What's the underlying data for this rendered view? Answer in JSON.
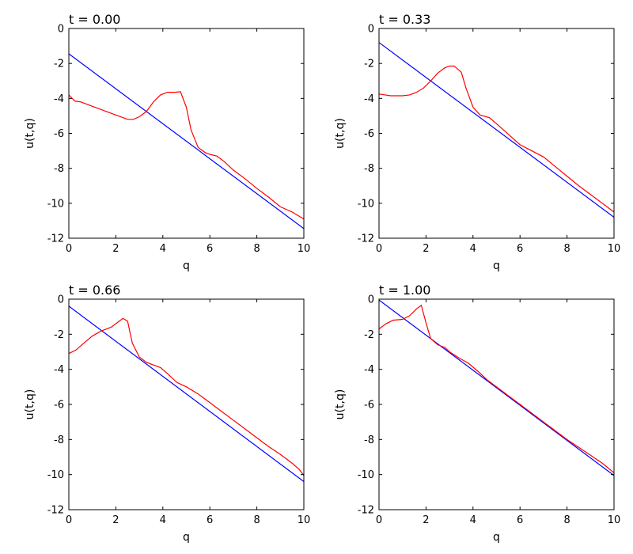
{
  "colors": {
    "series_a": "#0000ff",
    "series_b": "#ff0000"
  },
  "chart_data": [
    {
      "type": "line",
      "title": "t = 0.00",
      "xlabel": "q",
      "ylabel": "u(t,q)",
      "xlim": [
        0,
        10
      ],
      "ylim": [
        -12,
        0
      ],
      "xticks": [
        0,
        2,
        4,
        6,
        8,
        10
      ],
      "yticks": [
        0,
        -2,
        -4,
        -6,
        -8,
        -10,
        -12
      ],
      "grid": false,
      "series": [
        {
          "color": "#0000ff",
          "x": [
            0,
            10
          ],
          "y": [
            -1.45,
            -11.45
          ]
        },
        {
          "color": "#ff0000",
          "x": [
            0,
            0.25,
            0.5,
            1,
            1.5,
            2,
            2.5,
            2.75,
            3,
            3.3,
            3.6,
            3.9,
            4.2,
            4.5,
            4.75,
            5,
            5.2,
            5.5,
            5.8,
            6,
            6.3,
            6.6,
            7,
            7.5,
            8,
            8.5,
            9,
            9.5,
            10
          ],
          "y": [
            -3.8,
            -4.15,
            -4.2,
            -4.45,
            -4.7,
            -4.95,
            -5.2,
            -5.2,
            -5.05,
            -4.75,
            -4.2,
            -3.8,
            -3.65,
            -3.65,
            -3.62,
            -4.5,
            -5.8,
            -6.8,
            -7.1,
            -7.2,
            -7.3,
            -7.6,
            -8.1,
            -8.6,
            -9.15,
            -9.65,
            -10.2,
            -10.5,
            -10.9
          ]
        }
      ]
    },
    {
      "type": "line",
      "title": "t = 0.33",
      "xlabel": "q",
      "ylabel": "u(t,q)",
      "xlim": [
        0,
        10
      ],
      "ylim": [
        -12,
        0
      ],
      "xticks": [
        0,
        2,
        4,
        6,
        8,
        10
      ],
      "yticks": [
        0,
        -2,
        -4,
        -6,
        -8,
        -10,
        -12
      ],
      "grid": false,
      "series": [
        {
          "color": "#0000ff",
          "x": [
            0,
            10
          ],
          "y": [
            -0.8,
            -10.8
          ]
        },
        {
          "color": "#ff0000",
          "x": [
            0,
            0.5,
            1,
            1.3,
            1.6,
            1.9,
            2.2,
            2.5,
            2.8,
            3.0,
            3.2,
            3.5,
            3.7,
            4.0,
            4.3,
            4.7,
            5.0,
            5.5,
            6.0,
            6.5,
            7.0,
            7.5,
            8.0,
            8.5,
            9.0,
            9.5,
            10
          ],
          "y": [
            -3.75,
            -3.85,
            -3.85,
            -3.8,
            -3.65,
            -3.4,
            -3.0,
            -2.55,
            -2.25,
            -2.15,
            -2.15,
            -2.5,
            -3.4,
            -4.5,
            -4.95,
            -5.1,
            -5.45,
            -6.05,
            -6.65,
            -7.0,
            -7.35,
            -7.9,
            -8.45,
            -9.0,
            -9.5,
            -10.0,
            -10.5
          ]
        }
      ]
    },
    {
      "type": "line",
      "title": "t = 0.66",
      "xlabel": "q",
      "ylabel": "u(t,q)",
      "xlim": [
        0,
        10
      ],
      "ylim": [
        -12,
        0
      ],
      "xticks": [
        0,
        2,
        4,
        6,
        8,
        10
      ],
      "yticks": [
        0,
        -2,
        -4,
        -6,
        -8,
        -10,
        -12
      ],
      "grid": false,
      "series": [
        {
          "color": "#0000ff",
          "x": [
            0,
            10
          ],
          "y": [
            -0.4,
            -10.4
          ]
        },
        {
          "color": "#ff0000",
          "x": [
            0,
            0.3,
            0.6,
            1.0,
            1.4,
            1.8,
            2.0,
            2.3,
            2.5,
            2.7,
            3.0,
            3.3,
            3.6,
            3.9,
            4.2,
            4.6,
            5.0,
            5.5,
            6.0,
            6.5,
            7.0,
            7.5,
            8.0,
            8.5,
            9.0,
            9.5,
            9.8,
            10
          ],
          "y": [
            -3.1,
            -2.9,
            -2.55,
            -2.1,
            -1.8,
            -1.6,
            -1.4,
            -1.1,
            -1.25,
            -2.5,
            -3.3,
            -3.6,
            -3.75,
            -3.9,
            -4.25,
            -4.75,
            -5.0,
            -5.4,
            -5.9,
            -6.4,
            -6.9,
            -7.4,
            -7.9,
            -8.4,
            -8.85,
            -9.35,
            -9.7,
            -10.05
          ]
        }
      ]
    },
    {
      "type": "line",
      "title": "t = 1.00",
      "xlabel": "q",
      "ylabel": "u(t,q)",
      "xlim": [
        0,
        10
      ],
      "ylim": [
        -12,
        0
      ],
      "xticks": [
        0,
        2,
        4,
        6,
        8,
        10
      ],
      "yticks": [
        0,
        -2,
        -4,
        -6,
        -8,
        -10,
        -12
      ],
      "grid": false,
      "series": [
        {
          "color": "#0000ff",
          "x": [
            0,
            10
          ],
          "y": [
            -0.05,
            -10.05
          ]
        },
        {
          "color": "#ff0000",
          "x": [
            0,
            0.3,
            0.6,
            1.0,
            1.3,
            1.6,
            1.8,
            2.0,
            2.2,
            2.5,
            2.8,
            3.0,
            3.4,
            3.8,
            4.2,
            4.6,
            5.0,
            5.5,
            6.0,
            6.5,
            7.0,
            7.5,
            8.0,
            8.5,
            9.0,
            9.5,
            10
          ],
          "y": [
            -1.7,
            -1.4,
            -1.2,
            -1.15,
            -0.95,
            -0.55,
            -0.35,
            -1.35,
            -2.25,
            -2.6,
            -2.75,
            -3.0,
            -3.35,
            -3.65,
            -4.1,
            -4.6,
            -5.0,
            -5.5,
            -6.0,
            -6.5,
            -7.0,
            -7.5,
            -8.0,
            -8.45,
            -8.9,
            -9.35,
            -9.9
          ]
        }
      ]
    }
  ]
}
